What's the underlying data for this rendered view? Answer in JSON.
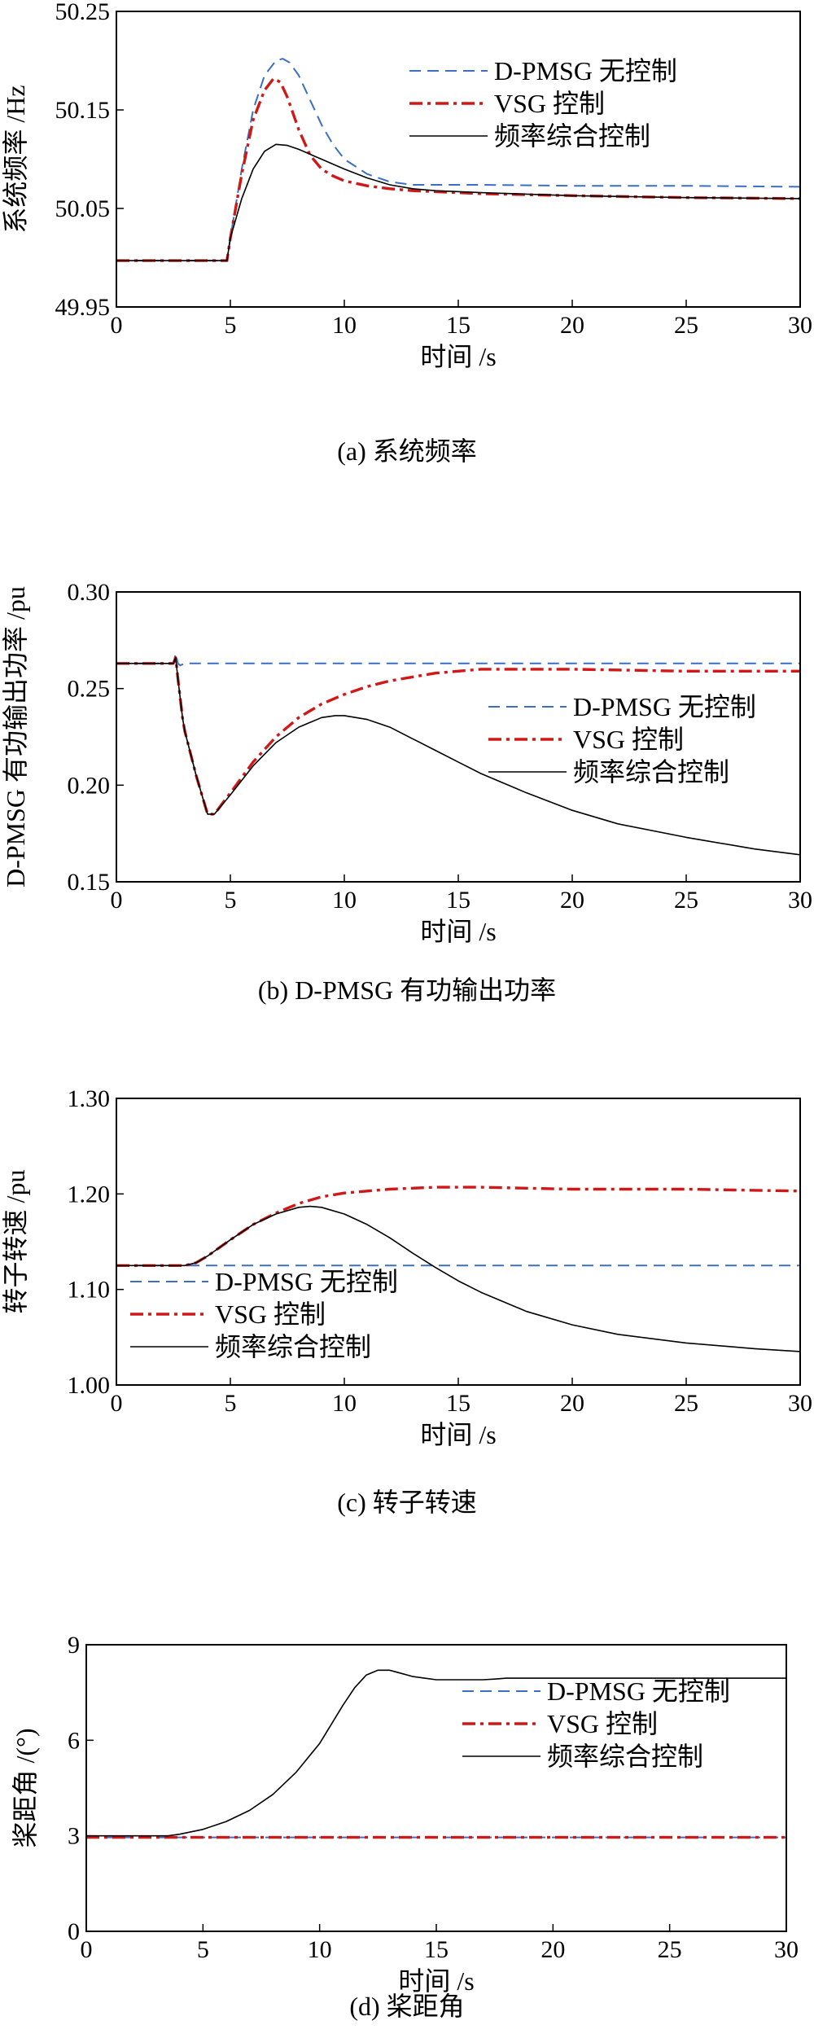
{
  "colors": {
    "no_control": "#3a6fc4",
    "vsg": "#d01818",
    "combined": "#000000"
  },
  "chart_data": [
    {
      "type": "line",
      "caption": "(a) 系统频率",
      "xlabel": "时间 /s",
      "ylabel": "系统频率 /Hz",
      "xlim": [
        0,
        30
      ],
      "ylim": [
        49.95,
        50.25
      ],
      "xticks": [
        0,
        5,
        10,
        15,
        20,
        25,
        30
      ],
      "yticks": [
        49.95,
        50.05,
        50.15,
        50.25
      ],
      "ytick_labels": [
        "49.95",
        "50.05",
        "50.15",
        "50.25"
      ],
      "legend_position": "top-right",
      "series": [
        {
          "name": "D-PMSG 无控制",
          "style": "dashed",
          "color": "#3a6fc4",
          "x": [
            0,
            4.85,
            5.0,
            5.5,
            6.0,
            6.5,
            7.0,
            7.3,
            7.6,
            8.0,
            8.5,
            9.0,
            9.5,
            10,
            11,
            12,
            13,
            14,
            16,
            20,
            25,
            30
          ],
          "y": [
            49.997,
            49.997,
            50.02,
            50.09,
            50.15,
            50.185,
            50.2,
            50.202,
            50.198,
            50.185,
            50.16,
            50.135,
            50.115,
            50.1,
            50.085,
            50.077,
            50.074,
            50.074,
            50.074,
            50.073,
            50.073,
            50.072
          ]
        },
        {
          "name": "VSG 控制",
          "style": "dashdot",
          "color": "#d01818",
          "x": [
            0,
            4.85,
            5.0,
            5.5,
            6.0,
            6.5,
            6.9,
            7.2,
            7.5,
            8.0,
            8.5,
            9.0,
            9.5,
            10,
            11,
            12,
            13,
            14,
            16,
            20,
            25,
            30
          ],
          "y": [
            49.997,
            49.997,
            50.02,
            50.085,
            50.14,
            50.17,
            50.182,
            50.178,
            50.163,
            50.13,
            50.104,
            50.09,
            50.083,
            50.078,
            50.073,
            50.07,
            50.068,
            50.067,
            50.065,
            50.063,
            50.061,
            50.06
          ]
        },
        {
          "name": "频率综合控制",
          "style": "solid",
          "color": "#000000",
          "x": [
            0,
            4.85,
            5.0,
            5.5,
            6.0,
            6.5,
            7.0,
            7.5,
            8.0,
            9.0,
            10,
            11,
            12,
            13,
            14,
            16,
            20,
            25,
            30
          ],
          "y": [
            49.997,
            49.997,
            50.02,
            50.06,
            50.09,
            50.108,
            50.115,
            50.114,
            50.11,
            50.1,
            50.09,
            50.081,
            50.074,
            50.07,
            50.068,
            50.066,
            50.063,
            50.061,
            50.06
          ]
        }
      ]
    },
    {
      "type": "line",
      "caption": "(b) D-PMSG 有功输出功率",
      "xlabel": "时间 /s",
      "ylabel": "D-PMSG 有功输出功率 /pu",
      "xlim": [
        0,
        30
      ],
      "ylim": [
        0.15,
        0.3
      ],
      "xticks": [
        0,
        5,
        10,
        15,
        20,
        25,
        30
      ],
      "yticks": [
        0.15,
        0.2,
        0.25,
        0.3
      ],
      "ytick_labels": [
        "0.15",
        "0.20",
        "0.25",
        "0.30"
      ],
      "legend_position": "center-right",
      "series": [
        {
          "name": "D-PMSG 无控制",
          "style": "dashed",
          "color": "#3a6fc4",
          "x": [
            0,
            2.5,
            2.6,
            2.7,
            2.8,
            3.0,
            5,
            10,
            20,
            30
          ],
          "y": [
            0.263,
            0.263,
            0.268,
            0.263,
            0.262,
            0.263,
            0.263,
            0.263,
            0.263,
            0.263
          ]
        },
        {
          "name": "VSG 控制",
          "style": "dashdot",
          "color": "#d01818",
          "x": [
            0,
            2.5,
            2.6,
            2.7,
            2.8,
            2.9,
            3.0,
            3.5,
            4.0,
            4.3,
            5.0,
            6.0,
            7.0,
            8.0,
            9.0,
            10,
            11,
            12,
            13,
            14,
            15,
            16,
            17,
            20,
            25,
            30
          ],
          "y": [
            0.263,
            0.263,
            0.266,
            0.255,
            0.245,
            0.235,
            0.228,
            0.205,
            0.185,
            0.185,
            0.196,
            0.212,
            0.225,
            0.235,
            0.242,
            0.247,
            0.251,
            0.254,
            0.256,
            0.258,
            0.259,
            0.26,
            0.26,
            0.26,
            0.259,
            0.259
          ]
        },
        {
          "name": "频率综合控制",
          "style": "solid",
          "color": "#000000",
          "x": [
            0,
            2.5,
            2.6,
            2.7,
            2.8,
            2.9,
            3.0,
            3.5,
            4.0,
            4.3,
            5.0,
            6.0,
            7.0,
            8.0,
            9.0,
            9.6,
            10,
            11,
            12,
            13,
            14,
            15,
            16,
            18,
            20,
            22,
            25,
            28,
            30
          ],
          "y": [
            0.263,
            0.263,
            0.266,
            0.255,
            0.245,
            0.235,
            0.228,
            0.205,
            0.185,
            0.185,
            0.195,
            0.21,
            0.222,
            0.23,
            0.235,
            0.236,
            0.236,
            0.234,
            0.23,
            0.224,
            0.218,
            0.212,
            0.206,
            0.196,
            0.187,
            0.18,
            0.173,
            0.167,
            0.164
          ]
        }
      ]
    },
    {
      "type": "line",
      "caption": "(c) 转子转速",
      "xlabel": "时间 /s",
      "ylabel": "转子转速 /pu",
      "xlim": [
        0,
        30
      ],
      "ylim": [
        1.0,
        1.3
      ],
      "xticks": [
        0,
        5,
        10,
        15,
        20,
        25,
        30
      ],
      "yticks": [
        1.0,
        1.1,
        1.2,
        1.3
      ],
      "ytick_labels": [
        "1.00",
        "1.10",
        "1.20",
        "1.30"
      ],
      "legend_position": "bottom-left",
      "series": [
        {
          "name": "D-PMSG 无控制",
          "style": "dashed",
          "color": "#3a6fc4",
          "x": [
            0,
            30
          ],
          "y": [
            1.125,
            1.125
          ]
        },
        {
          "name": "VSG 控制",
          "style": "dashdot",
          "color": "#d01818",
          "x": [
            0,
            3,
            3.5,
            4,
            5,
            6,
            7,
            8,
            9,
            10,
            12,
            14,
            16,
            18,
            20,
            25,
            30
          ],
          "y": [
            1.125,
            1.125,
            1.128,
            1.135,
            1.152,
            1.168,
            1.18,
            1.19,
            1.197,
            1.201,
            1.205,
            1.207,
            1.207,
            1.206,
            1.205,
            1.205,
            1.203
          ]
        },
        {
          "name": "频率综合控制",
          "style": "solid",
          "color": "#000000",
          "x": [
            0,
            3,
            3.5,
            4,
            5,
            6,
            7,
            8,
            8.5,
            9,
            10,
            11,
            12,
            13,
            14,
            15,
            16,
            18,
            20,
            22,
            25,
            28,
            30
          ],
          "y": [
            1.125,
            1.125,
            1.128,
            1.135,
            1.152,
            1.168,
            1.179,
            1.186,
            1.187,
            1.186,
            1.179,
            1.168,
            1.154,
            1.138,
            1.123,
            1.109,
            1.097,
            1.077,
            1.063,
            1.053,
            1.044,
            1.038,
            1.035
          ]
        }
      ]
    },
    {
      "type": "line",
      "caption": "(d) 桨距角",
      "xlabel": "时间 /s",
      "ylabel": "桨距角 /(°)",
      "xlim": [
        0,
        30
      ],
      "ylim": [
        0,
        9
      ],
      "xticks": [
        0,
        5,
        10,
        15,
        20,
        25,
        30
      ],
      "yticks": [
        0,
        3,
        6,
        9
      ],
      "ytick_labels": [
        "0",
        "3",
        "6",
        "9"
      ],
      "legend_position": "center-right",
      "series": [
        {
          "name": "D-PMSG 无控制",
          "style": "dashed",
          "color": "#3a6fc4",
          "x": [
            0,
            30
          ],
          "y": [
            2.95,
            2.95
          ]
        },
        {
          "name": "VSG 控制",
          "style": "dashdot",
          "color": "#d01818",
          "x": [
            0,
            30
          ],
          "y": [
            2.95,
            2.95
          ]
        },
        {
          "name": "频率综合控制",
          "style": "solid",
          "color": "#000000",
          "x": [
            0,
            3.5,
            4.0,
            5.0,
            6.0,
            7.0,
            8.0,
            9.0,
            10.0,
            10.5,
            11.0,
            11.5,
            12.0,
            12.5,
            13.0,
            13.5,
            14.0,
            14.5,
            15.0,
            16.0,
            17.0,
            17.5,
            18.0,
            20,
            25,
            30
          ],
          "y": [
            3.0,
            3.0,
            3.05,
            3.2,
            3.45,
            3.8,
            4.3,
            5.0,
            5.9,
            6.5,
            7.1,
            7.65,
            8.05,
            8.2,
            8.2,
            8.1,
            8.0,
            7.95,
            7.9,
            7.9,
            7.9,
            7.92,
            7.95,
            7.95,
            7.95,
            7.95
          ]
        }
      ]
    }
  ]
}
